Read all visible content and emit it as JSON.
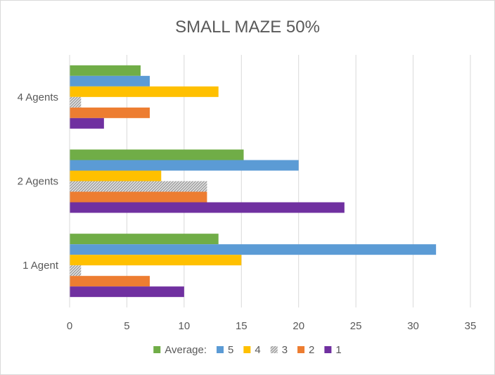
{
  "chart_data": {
    "type": "bar",
    "orientation": "horizontal",
    "title": "SMALL MAZE 50%",
    "xlabel": "",
    "ylabel": "",
    "xlim": [
      0,
      35
    ],
    "xticks": [
      0,
      5,
      10,
      15,
      20,
      25,
      30,
      35
    ],
    "grid": "vertical",
    "legend_position": "bottom",
    "categories": [
      "4 Agents",
      "2 Agents",
      "1 Agent"
    ],
    "series": [
      {
        "name": "Average:",
        "color": "#70ad47",
        "pattern": "solid",
        "values": [
          6.2,
          15.2,
          13
        ]
      },
      {
        "name": "5",
        "color": "#5b9bd5",
        "pattern": "solid",
        "values": [
          7,
          20,
          32
        ]
      },
      {
        "name": "4",
        "color": "#ffc000",
        "pattern": "solid",
        "values": [
          13,
          8,
          15
        ]
      },
      {
        "name": "3",
        "color": "#a5a5a5",
        "pattern": "hatched",
        "values": [
          1,
          12,
          1
        ]
      },
      {
        "name": "2",
        "color": "#ed7d31",
        "pattern": "solid",
        "values": [
          7,
          12,
          7
        ]
      },
      {
        "name": "1",
        "color": "#7030a0",
        "pattern": "solid",
        "values": [
          3,
          24,
          10
        ]
      }
    ]
  }
}
